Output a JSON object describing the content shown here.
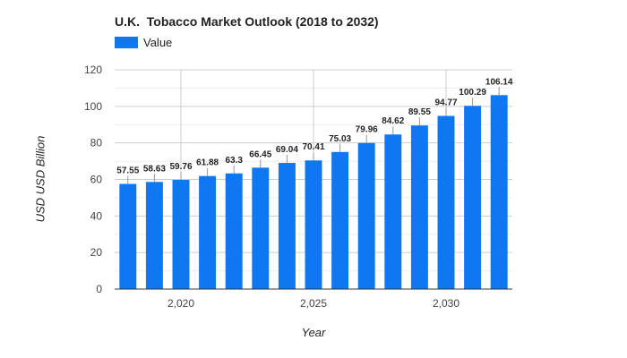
{
  "chart_data": {
    "type": "bar",
    "title": "U.K.  Tobacco Market Outlook (2018 to 2032)",
    "xlabel": "Year",
    "ylabel": "USD USD Billion",
    "x": [
      2018,
      2019,
      2020,
      2021,
      2022,
      2023,
      2024,
      2025,
      2026,
      2027,
      2028,
      2029,
      2030,
      2031,
      2032
    ],
    "series": [
      {
        "name": "Value",
        "color": "#0d78f2",
        "values": [
          57.55,
          58.63,
          59.76,
          61.88,
          63.3,
          66.45,
          69.04,
          70.41,
          75.03,
          79.96,
          84.62,
          89.55,
          94.77,
          100.29,
          106.14
        ],
        "value_labels": [
          "57.55",
          "58.63",
          "59.76",
          "61.88",
          "63.3",
          "66.45",
          "69.04",
          "70.41",
          "75.03",
          "79.96",
          "84.62",
          "89.55",
          "94.77",
          "100.29",
          "106.14"
        ]
      }
    ],
    "ylim": [
      0,
      120
    ],
    "y_ticks": [
      0,
      20,
      40,
      60,
      80,
      100,
      120
    ],
    "y_tick_labels": [
      "0",
      "20",
      "40",
      "60",
      "80",
      "100",
      "120"
    ],
    "x_ticks": [
      2020,
      2025,
      2030
    ],
    "x_tick_labels": [
      "2,020",
      "2,025",
      "2,030"
    ],
    "grid": true,
    "legend_position": "top-left"
  }
}
